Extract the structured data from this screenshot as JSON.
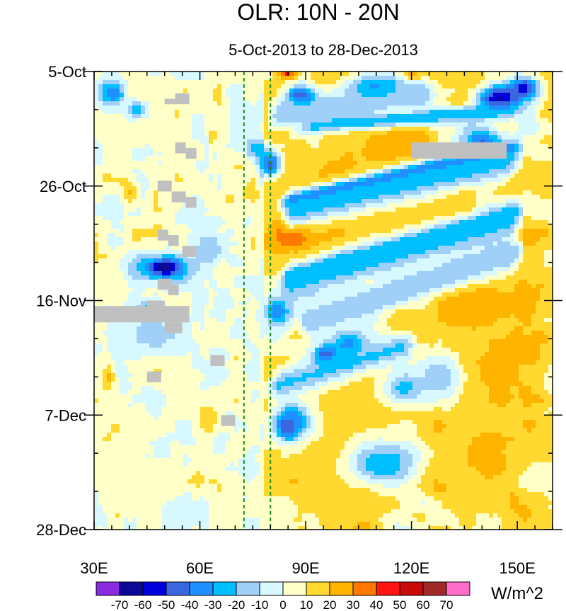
{
  "chart_data": {
    "type": "heatmap",
    "title": "OLR: 10N - 20N",
    "subtitle": "5-Oct-2013 to 28-Dec-2013",
    "x_axis": {
      "range": [
        30,
        160
      ],
      "unit": "degrees E",
      "ticks": [
        30,
        60,
        90,
        120,
        150
      ],
      "tick_labels": [
        "30E",
        "60E",
        "90E",
        "120E",
        "150E"
      ]
    },
    "y_axis": {
      "range_days": [
        0,
        84
      ],
      "ticks": [
        0,
        21,
        42,
        63,
        84
      ],
      "tick_labels": [
        "5-Oct",
        "26-Oct",
        "16-Nov",
        "7-Dec",
        "28-Dec"
      ],
      "direction": "time increases downward"
    },
    "reference_lines": [
      {
        "x": 72.5,
        "style": "dashed",
        "color": "#1a8a1a"
      },
      {
        "x": 80,
        "style": "dashed",
        "color": "#1a8a1a"
      }
    ],
    "colorbar": {
      "levels": [
        -70,
        -60,
        -50,
        -40,
        -30,
        -20,
        -10,
        0,
        10,
        20,
        30,
        40,
        50,
        60,
        70
      ],
      "labels": [
        "-70",
        "-60",
        "-50",
        "-40",
        "-30",
        "-20",
        "-10",
        "0",
        "10",
        "20",
        "30",
        "40",
        "50",
        "60",
        "70"
      ],
      "colors": [
        "#8a2be2",
        "#0a0a96",
        "#0000dc",
        "#3a66e0",
        "#1e90ff",
        "#00bfff",
        "#a0d0f8",
        "#d8f8ff",
        "#ffffc8",
        "#ffd830",
        "#ffb400",
        "#ff7800",
        "#ff1414",
        "#c80a0a",
        "#a02828",
        "#ff6ec8"
      ],
      "units": "W/m^2"
    },
    "missing_color": "#c0c0c0",
    "features": [
      {
        "type": "blob",
        "lon": 100,
        "day": 2,
        "value": 25,
        "rx": 9,
        "ry": 3
      },
      {
        "type": "blob",
        "lon": 85,
        "day": 0.5,
        "value": 45,
        "rx": 3,
        "ry": 1
      },
      {
        "type": "blob",
        "lon": 92,
        "day": 4,
        "value": 40,
        "rx": 3,
        "ry": 1.5
      },
      {
        "type": "blob",
        "lon": 120,
        "day": 1,
        "value": 48,
        "rx": 2.5,
        "ry": 1
      },
      {
        "type": "blob",
        "lon": 89,
        "day": 4.5,
        "value": -60,
        "rx": 5,
        "ry": 2
      },
      {
        "type": "blob",
        "lon": 110,
        "day": 3,
        "value": -38,
        "rx": 10,
        "ry": 2.5
      },
      {
        "type": "blob",
        "lon": 145,
        "day": 5,
        "value": -65,
        "rx": 6,
        "ry": 2.5
      },
      {
        "type": "blob",
        "lon": 152,
        "day": 3,
        "value": -55,
        "rx": 4,
        "ry": 2
      },
      {
        "type": "blob",
        "lon": 140,
        "day": 13,
        "value": -45,
        "rx": 6,
        "ry": 2.5
      },
      {
        "type": "blob",
        "lon": 35,
        "day": 4,
        "value": -40,
        "rx": 4,
        "ry": 2.5
      },
      {
        "type": "blob",
        "lon": 42,
        "day": 7,
        "value": -30,
        "rx": 3,
        "ry": 1.5
      },
      {
        "type": "blob",
        "lon": 80,
        "day": 17,
        "value": -55,
        "rx": 3,
        "ry": 2.5
      },
      {
        "type": "blob",
        "lon": 76,
        "day": 14,
        "value": -30,
        "rx": 3,
        "ry": 2
      },
      {
        "type": "blob",
        "lon": 118,
        "day": 13,
        "value": 30,
        "rx": 9,
        "ry": 4
      },
      {
        "type": "blob",
        "lon": 98,
        "day": 22,
        "value": 32,
        "rx": 9,
        "ry": 6
      },
      {
        "type": "blob",
        "lon": 88,
        "day": 29,
        "value": 35,
        "rx": 9,
        "ry": 4
      },
      {
        "type": "blob",
        "lon": 86,
        "day": 30,
        "value": 50,
        "rx": 4,
        "ry": 2
      },
      {
        "type": "blob",
        "lon": 110,
        "day": 24,
        "value": 20,
        "rx": 20,
        "ry": 10
      },
      {
        "type": "blob",
        "lon": 132,
        "day": 42,
        "value": 42,
        "rx": 5,
        "ry": 2.5
      },
      {
        "type": "blob",
        "lon": 138,
        "day": 42,
        "value": 30,
        "rx": 14,
        "ry": 6
      },
      {
        "type": "blob",
        "lon": 145,
        "day": 55,
        "value": 22,
        "rx": 12,
        "ry": 10
      },
      {
        "type": "blob",
        "lon": 105,
        "day": 62,
        "value": 15,
        "rx": 20,
        "ry": 10
      },
      {
        "type": "blob",
        "lon": 95,
        "day": 76,
        "value": 18,
        "rx": 14,
        "ry": 7
      },
      {
        "type": "blob",
        "lon": 140,
        "day": 70,
        "value": 22,
        "rx": 12,
        "ry": 7
      },
      {
        "type": "blob",
        "lon": 85,
        "day": 65,
        "value": -65,
        "rx": 3,
        "ry": 2
      },
      {
        "type": "blob",
        "lon": 86,
        "day": 64,
        "value": -40,
        "rx": 5,
        "ry": 3.5
      },
      {
        "type": "blob",
        "lon": 96,
        "day": 52,
        "value": -60,
        "rx": 4,
        "ry": 2
      },
      {
        "type": "blob",
        "lon": 102,
        "day": 50,
        "value": -35,
        "rx": 6,
        "ry": 3
      },
      {
        "type": "blob",
        "lon": 82,
        "day": 44,
        "value": -40,
        "rx": 4,
        "ry": 3
      },
      {
        "type": "blob",
        "lon": 118,
        "day": 58,
        "value": -25,
        "rx": 6,
        "ry": 3
      },
      {
        "type": "blob",
        "lon": 112,
        "day": 72,
        "value": -30,
        "rx": 10,
        "ry": 4
      },
      {
        "type": "blob",
        "lon": 128,
        "day": 56,
        "value": -20,
        "rx": 6,
        "ry": 4
      },
      {
        "type": "blob",
        "lon": 50,
        "day": 36,
        "value": -50,
        "rx": 8,
        "ry": 2.5
      },
      {
        "type": "blob",
        "lon": 50,
        "day": 36,
        "value": -70,
        "rx": 3,
        "ry": 1
      },
      {
        "type": "blob",
        "lon": 45,
        "day": 44,
        "value": -25,
        "rx": 4,
        "ry": 2
      },
      {
        "type": "blob",
        "lon": 47,
        "day": 48,
        "value": -15,
        "rx": 8,
        "ry": 3
      },
      {
        "type": "blob",
        "lon": 62,
        "day": 33,
        "value": -20,
        "rx": 4,
        "ry": 3
      },
      {
        "type": "blob",
        "lon": 34,
        "day": 56,
        "value": 22,
        "rx": 2,
        "ry": 3
      },
      {
        "type": "blob",
        "lon": 40,
        "day": 22,
        "value": 22,
        "rx": 2,
        "ry": 2
      },
      {
        "type": "blob",
        "lon": 62,
        "day": 64,
        "value": 20,
        "rx": 3,
        "ry": 3
      },
      {
        "type": "band",
        "lon0": 84,
        "day0": 24,
        "lon1": 150,
        "day1": 14,
        "value": -55,
        "width": 1.3
      },
      {
        "type": "band",
        "lon0": 84,
        "day0": 26,
        "lon1": 150,
        "day1": 16,
        "value": -25,
        "width": 3.2
      },
      {
        "type": "band",
        "lon0": 84,
        "day0": 38,
        "lon1": 150,
        "day1": 26,
        "value": -50,
        "width": 1.4
      },
      {
        "type": "band",
        "lon0": 84,
        "day0": 39,
        "lon1": 150,
        "day1": 27,
        "value": -25,
        "width": 3.5
      },
      {
        "type": "band",
        "lon0": 90,
        "day0": 46,
        "lon1": 150,
        "day1": 33,
        "value": -40,
        "width": 1.4
      },
      {
        "type": "band",
        "lon0": 90,
        "day0": 46,
        "lon1": 150,
        "day1": 33,
        "value": -15,
        "width": 3.5
      },
      {
        "type": "band",
        "lon0": 90,
        "day0": 10,
        "lon1": 150,
        "day1": 7,
        "value": -30,
        "width": 1.4
      },
      {
        "type": "band",
        "lon0": 80,
        "day0": 8,
        "lon1": 125,
        "day1": 4,
        "value": -20,
        "width": 2.5
      },
      {
        "type": "band",
        "lon0": 80,
        "day0": 58,
        "lon1": 120,
        "day1": 50,
        "value": -22,
        "width": 2.5
      }
    ],
    "missing_rects": [
      {
        "lon0": 120,
        "lon1": 147,
        "day0": 13,
        "day1": 16
      },
      {
        "lon0": 30,
        "lon1": 57,
        "day0": 43,
        "day1": 46
      },
      {
        "lon0": 45,
        "lon1": 50,
        "day0": 42,
        "day1": 43
      },
      {
        "lon0": 50,
        "lon1": 55,
        "day0": 46,
        "day1": 48
      },
      {
        "lon0": 53,
        "lon1": 57,
        "day0": 4,
        "day1": 6
      },
      {
        "lon0": 50,
        "lon1": 53,
        "day0": 5,
        "day1": 6
      },
      {
        "lon0": 53,
        "lon1": 56,
        "day0": 13,
        "day1": 15
      },
      {
        "lon0": 56,
        "lon1": 59,
        "day0": 14,
        "day1": 16
      },
      {
        "lon0": 48,
        "lon1": 52,
        "day0": 20,
        "day1": 22
      },
      {
        "lon0": 52,
        "lon1": 56,
        "day0": 22,
        "day1": 24
      },
      {
        "lon0": 56,
        "lon1": 59,
        "day0": 23,
        "day1": 25
      },
      {
        "lon0": 48,
        "lon1": 51,
        "day0": 29,
        "day1": 31
      },
      {
        "lon0": 51,
        "lon1": 54,
        "day0": 30,
        "day1": 32
      },
      {
        "lon0": 55,
        "lon1": 59,
        "day0": 32,
        "day1": 34
      },
      {
        "lon0": 48,
        "lon1": 52,
        "day0": 38,
        "day1": 40
      },
      {
        "lon0": 51,
        "lon1": 54,
        "day0": 39,
        "day1": 41
      },
      {
        "lon0": 63,
        "lon1": 67,
        "day0": 52,
        "day1": 54
      },
      {
        "lon0": 45,
        "lon1": 49,
        "day0": 55,
        "day1": 57
      },
      {
        "lon0": 66,
        "lon1": 70,
        "day0": 63,
        "day1": 65
      }
    ]
  }
}
